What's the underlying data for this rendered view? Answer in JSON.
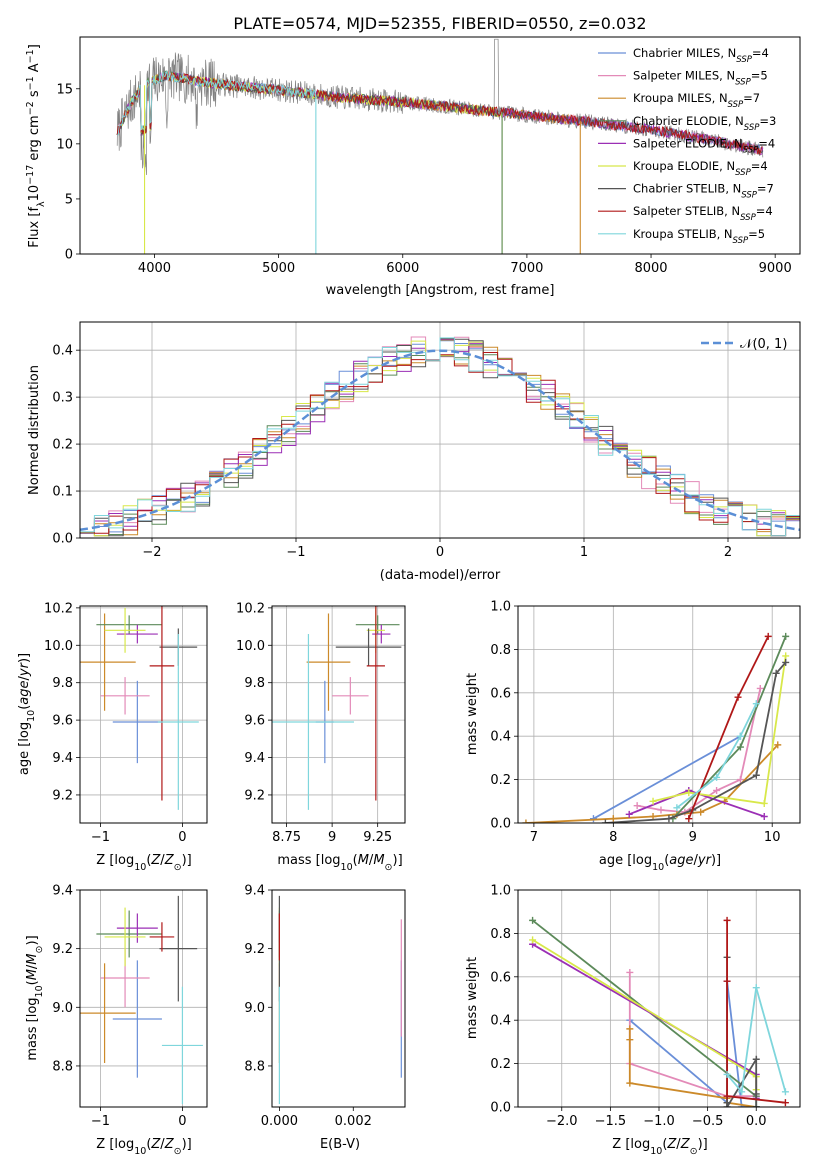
{
  "figure": {
    "title": "PLATE=0574, MJD=52355, FIBERID=0550, z=0.032"
  },
  "colors": {
    "Chabrier MILES": "#6a8fd8",
    "Salpeter MILES": "#e38ab8",
    "Kroupa MILES": "#cc8a2a",
    "Chabrier ELODIE": "#5c8a5a",
    "Salpeter ELODIE": "#9b2fb5",
    "Kroupa ELODIE": "#d8e84a",
    "Chabrier STELIB": "#555555",
    "Salpeter STELIB": "#b01818",
    "Kroupa STELIB": "#7fd6dc",
    "data": "#808080",
    "normal": "#5b8fd6"
  },
  "chart_data": [
    {
      "id": "spectrum",
      "type": "line",
      "title": "PLATE=0574, MJD=52355, FIBERID=0550, z=0.032",
      "xlabel": "wavelength [Angstrom, rest frame]",
      "ylabel": "Flux [f_λ10^-17 erg cm^-2 s^-1 A^-1]",
      "xlim": [
        3400,
        9200
      ],
      "ylim": [
        0,
        19.7
      ],
      "xticks": [
        4000,
        5000,
        6000,
        7000,
        8000,
        9000
      ],
      "yticks": [
        0,
        5,
        10,
        15
      ],
      "grid": false,
      "legend": "top-right",
      "legend_entries": [
        {
          "base": "Chabrier MILES, N",
          "sub": "SSP",
          "tail": "=4"
        },
        {
          "base": "Salpeter MILES, N",
          "sub": "SSP",
          "tail": "=5"
        },
        {
          "base": "Kroupa MILES, N",
          "sub": "SSP",
          "tail": "=7"
        },
        {
          "base": "Chabrier ELODIE, N",
          "sub": "SSP",
          "tail": "=3"
        },
        {
          "base": "Salpeter ELODIE, N",
          "sub": "SSP",
          "tail": "=4"
        },
        {
          "base": "Kroupa ELODIE, N",
          "sub": "SSP",
          "tail": "=4"
        },
        {
          "base": "Chabrier STELIB, N",
          "sub": "SSP",
          "tail": "=7"
        },
        {
          "base": "Salpeter STELIB, N",
          "sub": "SSP",
          "tail": "=4"
        },
        {
          "base": "Kroupa STELIB, N",
          "sub": "SSP",
          "tail": "=5"
        }
      ],
      "continuum": {
        "x": [
          3700,
          3800,
          3900,
          4000,
          4100,
          4200,
          4400,
          4700,
          5000,
          5500,
          6000,
          6500,
          7000,
          7500,
          8000,
          8500,
          8900
        ],
        "y": [
          11.0,
          13.5,
          15.2,
          15.8,
          16.2,
          16.0,
          15.6,
          15.2,
          14.9,
          14.2,
          13.8,
          13.2,
          12.6,
          12.0,
          11.3,
          10.3,
          9.4
        ]
      },
      "model_ranges": [
        [
          3700,
          8900
        ],
        [
          3700,
          8900
        ],
        [
          3700,
          7450
        ],
        [
          3700,
          6800
        ],
        [
          3700,
          8900
        ],
        [
          3700,
          6800
        ],
        [
          3700,
          8900
        ],
        [
          3700,
          8900
        ],
        [
          3700,
          5300
        ]
      ],
      "dropouts": [
        {
          "series": "Kroupa MILES",
          "x": 7430
        },
        {
          "series": "Kroupa ELODIE",
          "x": 6800
        },
        {
          "series": "Chabrier ELODIE",
          "x": 6800
        },
        {
          "series": "Kroupa STELIB",
          "x": 5300
        },
        {
          "series": "Kroupa ELODIE",
          "x": 3920
        }
      ]
    },
    {
      "id": "residuals",
      "type": "line",
      "xlabel": "(data-model)/error",
      "ylabel": "Normed distribution",
      "xlim": [
        -2.5,
        2.5
      ],
      "ylim": [
        0,
        0.46
      ],
      "xticks": [
        -2,
        -1,
        0,
        1,
        2
      ],
      "yticks": [
        0.0,
        0.1,
        0.2,
        0.3,
        0.4
      ],
      "grid": true,
      "legend": "top-right",
      "legend_label": "𝒩(0, 1)",
      "bins": 50,
      "normal": {
        "mean": 0,
        "sigma": 1
      }
    },
    {
      "id": "age-vs-Z",
      "type": "scatter",
      "xlabel": "Z [log10(Z/Z⊙)]",
      "ylabel": "age [log10(age/yr)]",
      "xlim": [
        -1.25,
        0.3
      ],
      "ylim": [
        9.05,
        10.21
      ],
      "xticks": [
        -1,
        0
      ],
      "yticks": [
        9.2,
        9.4,
        9.6,
        9.8,
        10.0,
        10.2
      ],
      "grid": true,
      "points": [
        {
          "s": "Chabrier MILES",
          "x": -0.55,
          "y": 9.59,
          "xe": 0.3,
          "ye": 0.22
        },
        {
          "s": "Salpeter MILES",
          "x": -0.7,
          "y": 9.73,
          "xe": 0.3,
          "ye": 0.1
        },
        {
          "s": "Kroupa MILES",
          "x": -0.95,
          "y": 9.91,
          "xe": 0.38,
          "ye": 0.26
        },
        {
          "s": "Chabrier ELODIE",
          "x": -0.65,
          "y": 10.11,
          "xe": 0.4,
          "ye": 0.05
        },
        {
          "s": "Salpeter ELODIE",
          "x": -0.55,
          "y": 10.06,
          "xe": 0.25,
          "ye": 0.05
        },
        {
          "s": "Kroupa ELODIE",
          "x": -0.7,
          "y": 10.08,
          "xe": 0.25,
          "ye": 0.12
        },
        {
          "s": "Chabrier STELIB",
          "x": -0.05,
          "y": 9.99,
          "xe": 0.23,
          "ye": 0.1
        },
        {
          "s": "Salpeter STELIB",
          "x": -0.25,
          "y": 9.89,
          "xe": 0.15,
          "ye": 0.72
        },
        {
          "s": "Kroupa STELIB",
          "x": -0.05,
          "y": 9.59,
          "xe": 0.25,
          "ye": 0.47
        }
      ]
    },
    {
      "id": "age-vs-mass",
      "type": "scatter",
      "xlabel": "mass [log10(M/M⊙)]",
      "ylabel": "",
      "xlim": [
        8.67,
        9.4
      ],
      "ylim": [
        9.05,
        10.21
      ],
      "xticks": [
        8.75,
        9.0,
        9.25
      ],
      "yticks": [
        9.2,
        9.4,
        9.6,
        9.8,
        10.0,
        10.2
      ],
      "grid": true,
      "points": [
        {
          "s": "Chabrier MILES",
          "x": 8.96,
          "y": 9.59,
          "xe": 0.05,
          "ye": 0.22
        },
        {
          "s": "Salpeter MILES",
          "x": 9.1,
          "y": 9.73,
          "xe": 0.1,
          "ye": 0.1
        },
        {
          "s": "Kroupa MILES",
          "x": 8.98,
          "y": 9.91,
          "xe": 0.12,
          "ye": 0.26
        },
        {
          "s": "Chabrier ELODIE",
          "x": 9.25,
          "y": 10.11,
          "xe": 0.12,
          "ye": 0.05
        },
        {
          "s": "Salpeter ELODIE",
          "x": 9.27,
          "y": 10.06,
          "xe": 0.05,
          "ye": 0.05
        },
        {
          "s": "Kroupa ELODIE",
          "x": 9.24,
          "y": 10.08,
          "xe": 0.05,
          "ye": 0.12
        },
        {
          "s": "Chabrier STELIB",
          "x": 9.2,
          "y": 9.99,
          "xe": 0.18,
          "ye": 0.1
        },
        {
          "s": "Salpeter STELIB",
          "x": 9.24,
          "y": 9.89,
          "xe": 0.05,
          "ye": 0.72
        },
        {
          "s": "Kroupa STELIB",
          "x": 8.87,
          "y": 9.59,
          "xe": 0.25,
          "ye": 0.47
        }
      ]
    },
    {
      "id": "massweight-vs-age",
      "type": "line",
      "xlabel": "age [log10(age/yr)]",
      "ylabel": "mass weight",
      "xlim": [
        6.8,
        10.35
      ],
      "ylim": [
        0,
        1.0
      ],
      "xticks": [
        7,
        8,
        9,
        10
      ],
      "yticks": [
        0.0,
        0.2,
        0.4,
        0.6,
        0.8,
        1.0
      ],
      "grid": true,
      "series": [
        {
          "name": "Chabrier MILES",
          "x": [
            7.75,
            9.6
          ],
          "y": [
            0.02,
            0.4
          ]
        },
        {
          "name": "Salpeter MILES",
          "x": [
            8.3,
            8.6,
            8.9,
            9.3,
            9.6,
            9.85
          ],
          "y": [
            0.08,
            0.06,
            0.05,
            0.15,
            0.2,
            0.62
          ]
        },
        {
          "name": "Kroupa MILES",
          "x": [
            6.9,
            8.0,
            8.5,
            8.8,
            9.1,
            9.4,
            10.07
          ],
          "y": [
            0.0,
            0.02,
            0.03,
            0.04,
            0.05,
            0.1,
            0.36
          ]
        },
        {
          "name": "Chabrier ELODIE",
          "x": [
            8.75,
            9.6,
            10.17
          ],
          "y": [
            0.02,
            0.35,
            0.86
          ]
        },
        {
          "name": "Salpeter ELODIE",
          "x": [
            8.2,
            8.95,
            9.9
          ],
          "y": [
            0.04,
            0.15,
            0.03
          ]
        },
        {
          "name": "Kroupa ELODIE",
          "x": [
            8.5,
            8.95,
            9.9,
            10.17
          ],
          "y": [
            0.1,
            0.14,
            0.09,
            0.77
          ]
        },
        {
          "name": "Chabrier STELIB",
          "x": [
            7.9,
            8.7,
            9.0,
            9.8,
            10.05,
            10.17
          ],
          "y": [
            0.0,
            0.02,
            0.06,
            0.22,
            0.69,
            0.74
          ]
        },
        {
          "name": "Salpeter STELIB",
          "x": [
            8.95,
            9.57,
            9.95
          ],
          "y": [
            0.02,
            0.58,
            0.86
          ]
        },
        {
          "name": "Kroupa STELIB",
          "x": [
            8.8,
            9.3,
            9.6,
            9.8
          ],
          "y": [
            0.07,
            0.21,
            0.4,
            0.55
          ]
        }
      ]
    },
    {
      "id": "mass-vs-Z",
      "type": "scatter",
      "xlabel": "Z [log10(Z/Z⊙)]",
      "ylabel": "mass [log10(M/M⊙)]",
      "xlim": [
        -1.25,
        0.3
      ],
      "ylim": [
        8.66,
        9.4
      ],
      "xticks": [
        -1,
        0
      ],
      "yticks": [
        8.8,
        9.0,
        9.2,
        9.4
      ],
      "grid": true,
      "points": [
        {
          "s": "Chabrier MILES",
          "x": -0.55,
          "y": 8.96,
          "xe": 0.3,
          "ye": 0.2
        },
        {
          "s": "Salpeter MILES",
          "x": -0.7,
          "y": 9.1,
          "xe": 0.3,
          "ye": 0.1
        },
        {
          "s": "Kroupa MILES",
          "x": -0.95,
          "y": 8.98,
          "xe": 0.38,
          "ye": 0.17
        },
        {
          "s": "Chabrier ELODIE",
          "x": -0.65,
          "y": 9.25,
          "xe": 0.4,
          "ye": 0.08
        },
        {
          "s": "Salpeter ELODIE",
          "x": -0.55,
          "y": 9.27,
          "xe": 0.25,
          "ye": 0.05
        },
        {
          "s": "Kroupa ELODIE",
          "x": -0.7,
          "y": 9.24,
          "xe": 0.25,
          "ye": 0.1
        },
        {
          "s": "Chabrier STELIB",
          "x": -0.05,
          "y": 9.2,
          "xe": 0.23,
          "ye": 0.18
        },
        {
          "s": "Salpeter STELIB",
          "x": -0.25,
          "y": 9.24,
          "xe": 0.15,
          "ye": 0.05
        },
        {
          "s": "Kroupa STELIB",
          "x": 0.0,
          "y": 8.87,
          "xe": 0.25,
          "ye": 0.2
        }
      ]
    },
    {
      "id": "mass-vs-EBV",
      "type": "scatter",
      "xlabel": "E(B-V)",
      "ylabel": "",
      "xlim": [
        -0.0002,
        0.0034
      ],
      "ylim": [
        8.66,
        9.4
      ],
      "xticks": [
        0.0,
        0.002
      ],
      "xticklabels": [
        "0.000",
        "0.002"
      ],
      "yticks": [
        8.8,
        9.0,
        9.2,
        9.4
      ],
      "grid": false,
      "points": [
        {
          "s": "Chabrier MILES",
          "x": 0.0033,
          "y": 8.96,
          "xe": 0,
          "ye": 0.2
        },
        {
          "s": "Salpeter MILES",
          "x": 0.0033,
          "y": 9.1,
          "xe": 0,
          "ye": 0.2
        },
        {
          "s": "Kroupa MILES",
          "x": 0.0,
          "y": 8.98,
          "xe": 0,
          "ye": 0.17
        },
        {
          "s": "Chabrier ELODIE",
          "x": 0.0,
          "y": 9.25,
          "xe": 0,
          "ye": 0.08
        },
        {
          "s": "Salpeter ELODIE",
          "x": 0.0,
          "y": 9.27,
          "xe": 0,
          "ye": 0.05
        },
        {
          "s": "Kroupa ELODIE",
          "x": 0.0,
          "y": 9.24,
          "xe": 0,
          "ye": 0.1
        },
        {
          "s": "Chabrier STELIB",
          "x": 0.0,
          "y": 9.2,
          "xe": 0,
          "ye": 0.18
        },
        {
          "s": "Salpeter STELIB",
          "x": 0.0,
          "y": 9.24,
          "xe": 0,
          "ye": 0.08
        },
        {
          "s": "Kroupa STELIB",
          "x": 0.0,
          "y": 8.87,
          "xe": 0,
          "ye": 0.2
        }
      ]
    },
    {
      "id": "massweight-vs-Z",
      "type": "line",
      "xlabel": "Z [log10(Z/Z⊙)]",
      "ylabel": "mass weight",
      "xlim": [
        -2.45,
        0.45
      ],
      "ylim": [
        0,
        1.0
      ],
      "xticks": [
        -2.0,
        -1.5,
        -1.0,
        -0.5,
        0.0
      ],
      "xticklabels": [
        "−2.0",
        "−1.5",
        "−1.0",
        "−0.5",
        "0.0"
      ],
      "yticks": [
        0.0,
        0.2,
        0.4,
        0.6,
        0.8,
        1.0
      ],
      "grid": true,
      "series": [
        {
          "name": "Chabrier MILES",
          "x": [
            -1.3,
            -0.3,
            -0.3,
            -0.15,
            0.0
          ],
          "y": [
            0.4,
            0.02,
            0.58,
            0.0,
            0.0
          ]
        },
        {
          "name": "Salpeter MILES",
          "x": [
            -1.3,
            -1.3,
            -0.3,
            0.0
          ],
          "y": [
            0.62,
            0.2,
            0.05,
            0.05
          ]
        },
        {
          "name": "Kroupa MILES",
          "x": [
            -1.3,
            -1.3,
            -1.3,
            -0.3,
            -0.3,
            0.0
          ],
          "y": [
            0.36,
            0.31,
            0.11,
            0.04,
            0.02,
            0.0
          ]
        },
        {
          "name": "Chabrier ELODIE",
          "x": [
            -2.3,
            0.0,
            0.0
          ],
          "y": [
            0.86,
            0.05,
            0.0
          ]
        },
        {
          "name": "Salpeter ELODIE",
          "x": [
            -2.3,
            0.0,
            0.0
          ],
          "y": [
            0.75,
            0.15,
            0.04
          ]
        },
        {
          "name": "Kroupa ELODIE",
          "x": [
            -2.3,
            0.0,
            0.0
          ],
          "y": [
            0.77,
            0.14,
            0.08
          ]
        },
        {
          "name": "Chabrier STELIB",
          "x": [
            -0.3,
            -0.3,
            -0.3,
            0.0,
            0.0,
            0.0
          ],
          "y": [
            0.69,
            0.02,
            0.0,
            0.22,
            0.06,
            0.0
          ]
        },
        {
          "name": "Salpeter STELIB",
          "x": [
            -0.3,
            -0.3,
            -0.3,
            0.3
          ],
          "y": [
            0.86,
            0.58,
            0.05,
            0.02
          ]
        },
        {
          "name": "Kroupa STELIB",
          "x": [
            -0.3,
            -0.15,
            0.0,
            0.3
          ],
          "y": [
            0.15,
            0.07,
            0.55,
            0.07
          ]
        }
      ]
    }
  ]
}
